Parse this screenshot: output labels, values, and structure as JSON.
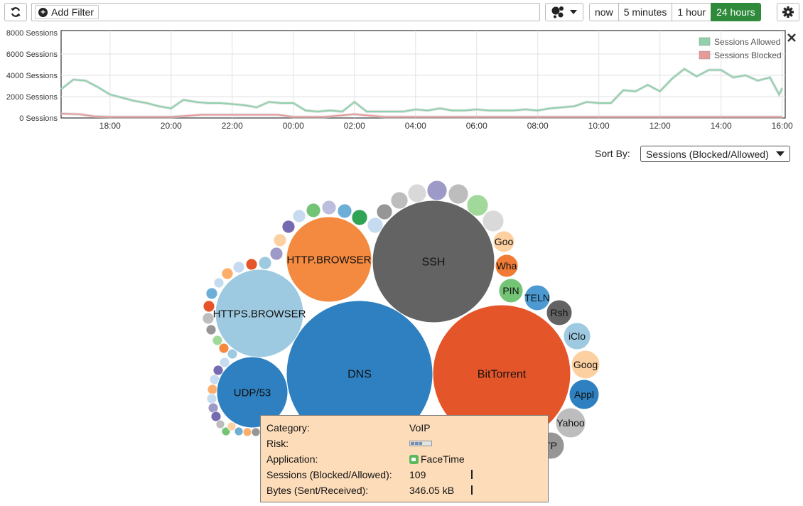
{
  "toolbar": {
    "refresh_icon": "refresh-icon",
    "add_filter_label": "Add Filter",
    "view_icon": "bubble-view-icon",
    "settings_icon": "gear-icon"
  },
  "time_ranges": [
    {
      "label": "now",
      "active": false
    },
    {
      "label": "5 minutes",
      "active": false
    },
    {
      "label": "1 hour",
      "active": false
    },
    {
      "label": "24 hours",
      "active": true
    }
  ],
  "chart_data": {
    "type": "line",
    "y_ticks": [
      "8000 Sessions",
      "6000 Sessions",
      "4000 Sessions",
      "2000 Sessions",
      "0 Sessions"
    ],
    "ylim": [
      0,
      8000
    ],
    "x_ticks": [
      "18:00",
      "20:00",
      "22:00",
      "00:00",
      "02:00",
      "04:00",
      "06:00",
      "08:00",
      "10:00",
      "12:00",
      "14:00",
      "16:00"
    ],
    "xlim": [
      -1.6,
      22.1
    ],
    "grid": true,
    "legend_position": "top-right",
    "series": [
      {
        "name": "Sessions Allowed",
        "color": "#8fd1ac",
        "x": [
          -1.6,
          -1.2,
          -0.8,
          -0.4,
          0.0,
          0.4,
          0.8,
          1.2,
          1.6,
          2.0,
          2.4,
          2.8,
          3.2,
          3.6,
          4.0,
          4.4,
          4.8,
          5.2,
          5.6,
          6.0,
          6.4,
          6.8,
          7.2,
          7.6,
          8.0,
          8.4,
          8.8,
          9.2,
          9.6,
          10.0,
          10.4,
          10.8,
          11.2,
          11.6,
          12.0,
          12.4,
          12.8,
          13.2,
          13.6,
          14.0,
          14.4,
          14.8,
          15.2,
          15.6,
          16.0,
          16.4,
          16.8,
          17.2,
          17.6,
          18.0,
          18.4,
          18.8,
          19.2,
          19.6,
          20.0,
          20.4,
          20.8,
          21.2,
          21.6,
          21.9,
          22.0
        ],
        "y": [
          2700,
          3600,
          3500,
          2900,
          2200,
          1900,
          1600,
          1400,
          1100,
          900,
          1700,
          1500,
          1400,
          1400,
          1300,
          1200,
          1000,
          1500,
          1400,
          1400,
          700,
          600,
          700,
          600,
          1500,
          600,
          600,
          600,
          600,
          800,
          700,
          900,
          700,
          700,
          800,
          700,
          700,
          700,
          800,
          700,
          900,
          1000,
          1100,
          1500,
          1400,
          1400,
          2600,
          2500,
          3100,
          2500,
          3700,
          4600,
          3900,
          4500,
          4500,
          3800,
          4000,
          3500,
          3800,
          2200,
          2800
        ]
      },
      {
        "name": "Sessions Blocked",
        "color": "#e89a9a",
        "x": [
          -1.6,
          -1.0,
          -0.5,
          0.0,
          1.0,
          2.0,
          3.0,
          4.0,
          5.0,
          5.5,
          6.0,
          7.0,
          8.0,
          9.0,
          10.0,
          11.0,
          12.0,
          13.0,
          14.0,
          15.0,
          16.0,
          17.0,
          18.0,
          19.0,
          20.0,
          21.0,
          22.0
        ],
        "y": [
          400,
          350,
          150,
          100,
          100,
          100,
          300,
          300,
          300,
          300,
          100,
          100,
          350,
          100,
          100,
          100,
          100,
          100,
          100,
          100,
          100,
          100,
          100,
          100,
          100,
          100,
          100
        ]
      }
    ]
  },
  "sort": {
    "label": "Sort By:",
    "value": "Sessions (Blocked/Allowed)"
  },
  "bubbles": {
    "labeled": [
      {
        "name": "DNS",
        "color": "#2e80c0"
      },
      {
        "name": "BitTorrent",
        "color": "#e5552a"
      },
      {
        "name": "SSH",
        "color": "#636363"
      },
      {
        "name": "HTTPS.BROWSER",
        "color": "#9ecae1"
      },
      {
        "name": "HTTP.BROWSER",
        "color": "#f38a3f"
      },
      {
        "name": "UDP/53",
        "color": "#2e80c0"
      },
      {
        "name": "Goo",
        "color": "#fdd0a2"
      },
      {
        "name": "Wha",
        "color": "#f07b35"
      },
      {
        "name": "PIN",
        "color": "#74c476"
      },
      {
        "name": "TELN",
        "color": "#4c9ad1"
      },
      {
        "name": "Rsh",
        "color": "#636363"
      },
      {
        "name": "iClo",
        "color": "#9ecae1"
      },
      {
        "name": "Goog",
        "color": "#fdd0a2"
      },
      {
        "name": "Appl",
        "color": "#2e80c0"
      },
      {
        "name": "Yahoo",
        "color": "#bdbdbd"
      },
      {
        "name": "TP",
        "color": "#969696"
      }
    ]
  },
  "tooltip": {
    "category_label": "Category:",
    "category_value": "VoIP",
    "risk_label": "Risk:",
    "risk_level": 3,
    "risk_max": 5,
    "application_label": "Application:",
    "application_value": "FaceTime",
    "sessions_label": "Sessions (Blocked/Allowed):",
    "sessions_value": "109",
    "bytes_label": "Bytes (Sent/Received):",
    "bytes_value": "346.05 kB"
  }
}
